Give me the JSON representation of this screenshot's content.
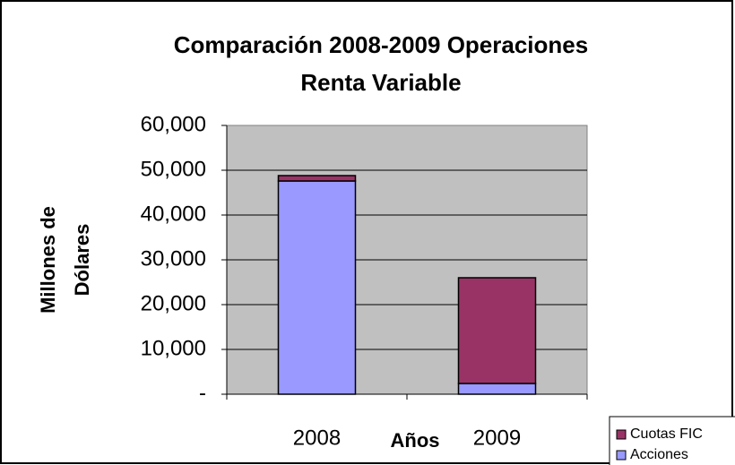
{
  "chart_data": {
    "type": "stacked_bar",
    "title": [
      "Comparación 2008-2009  Operaciones",
      "Renta Variable"
    ],
    "xlabel": "Años",
    "ylabel": [
      "Millones de",
      "Dólares"
    ],
    "categories": [
      "2008",
      "2009"
    ],
    "series": [
      {
        "name": "Acciones",
        "color": "#9999ff",
        "values": [
          47600,
          2400
        ]
      },
      {
        "name": "Cuotas FIC",
        "color": "#993366",
        "values": [
          1200,
          23600
        ]
      }
    ],
    "ylim": [
      0,
      60000
    ],
    "yticks": [
      {
        "value": 0,
        "label": "-"
      },
      {
        "value": 10000,
        "label": "10,000"
      },
      {
        "value": 20000,
        "label": "20,000"
      },
      {
        "value": 30000,
        "label": "30,000"
      },
      {
        "value": 40000,
        "label": "40,000"
      },
      {
        "value": 50000,
        "label": "50,000"
      },
      {
        "value": 60000,
        "label": "60,000"
      }
    ],
    "grid": true,
    "legend": "bottom-right"
  }
}
